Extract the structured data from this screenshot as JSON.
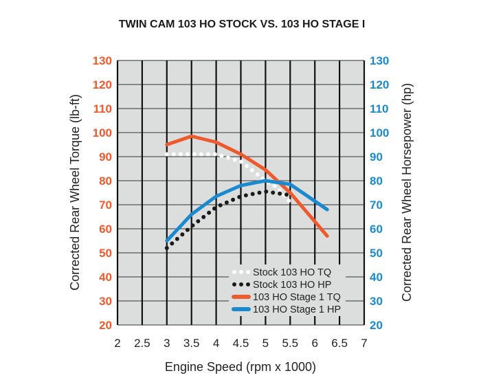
{
  "chart_data": {
    "type": "line",
    "title": "TWIN CAM 103 HO STOCK VS. 103 HO STAGE I",
    "xlabel": "Engine Speed (rpm x 1000)",
    "ylabel_left": "Corrected Rear Wheel Torque (lb-ft)",
    "ylabel_right": "Corrected Rear Wheel Horsepower (hp)",
    "xlim": [
      2,
      7
    ],
    "ylim": [
      20,
      130
    ],
    "x_ticks": [
      "2",
      "2.5",
      "3",
      "3.5",
      "4",
      "4.5",
      "5",
      "5.5",
      "6",
      "6.5",
      "7"
    ],
    "y_ticks": [
      "20",
      "30",
      "40",
      "50",
      "60",
      "70",
      "80",
      "90",
      "100",
      "110",
      "120",
      "130"
    ],
    "grid": true,
    "legend_placement": "bottom-right",
    "colors": {
      "left_axis": "#ee5a2b",
      "right_axis": "#1a8ad0",
      "plot_bg": "#dcdddd"
    },
    "series": [
      {
        "name": "Stock 103 HO TQ",
        "style": "dotted",
        "color": "#ffffff",
        "x": [
          3,
          3.5,
          4,
          4.5,
          5,
          5.25,
          5.5
        ],
        "y": [
          91,
          91,
          91,
          88,
          80,
          77,
          71
        ]
      },
      {
        "name": "Stock 103 HO HP",
        "style": "dotted",
        "color": "#1a1a1a",
        "x": [
          3,
          3.5,
          4,
          4.5,
          5,
          5.5
        ],
        "y": [
          52,
          61,
          69,
          73.5,
          75.5,
          74
        ]
      },
      {
        "name": "103 HO Stage 1 TQ",
        "style": "solid",
        "color": "#ee5a2b",
        "x": [
          3,
          3.5,
          4,
          4.5,
          5,
          5.5,
          6.25
        ],
        "y": [
          95,
          98.5,
          96,
          91,
          84.5,
          75,
          57
        ]
      },
      {
        "name": "103 HO Stage 1 HP",
        "style": "solid",
        "color": "#1a8ad0",
        "x": [
          3,
          3.5,
          4,
          4.5,
          5,
          5.5,
          6.25
        ],
        "y": [
          55,
          66,
          73.5,
          78,
          80,
          78.5,
          68
        ]
      }
    ]
  }
}
